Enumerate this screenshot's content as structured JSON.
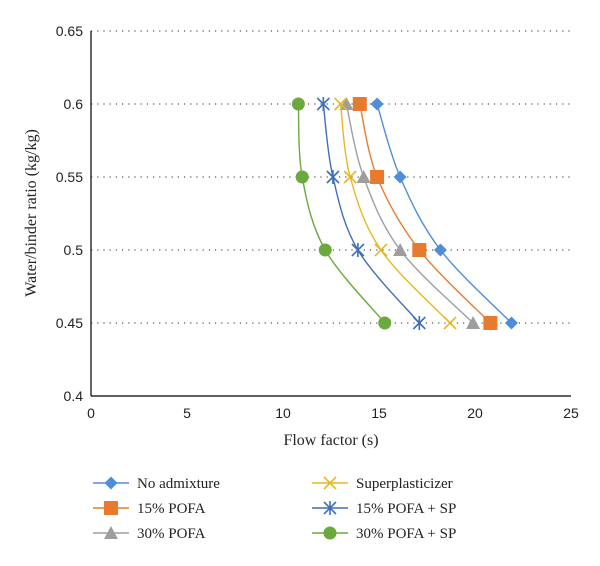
{
  "chart_data": {
    "type": "line",
    "title": "",
    "xlabel": "Flow factor (s)",
    "ylabel": "Water/binder ratio (kg/kg)",
    "xlim": [
      0,
      25
    ],
    "ylim": [
      0.4,
      0.65
    ],
    "xticks": [
      "0",
      "5",
      "10",
      "15",
      "20",
      "25"
    ],
    "yticks": [
      "0.4",
      "0.45",
      "0.5",
      "0.55",
      "0.6",
      "0.65"
    ],
    "grid": "horizontal-dotted",
    "legend": "bottom",
    "series": [
      {
        "name": "No admixture",
        "color": "#4F8ED6",
        "marker": "diamond",
        "points": [
          {
            "x": 14.9,
            "y": 0.6
          },
          {
            "x": 16.1,
            "y": 0.55
          },
          {
            "x": 18.2,
            "y": 0.5
          },
          {
            "x": 21.9,
            "y": 0.45
          }
        ]
      },
      {
        "name": "15% POFA",
        "color": "#E87A2E",
        "marker": "square",
        "points": [
          {
            "x": 14.0,
            "y": 0.6
          },
          {
            "x": 14.9,
            "y": 0.55
          },
          {
            "x": 17.1,
            "y": 0.5
          },
          {
            "x": 20.8,
            "y": 0.45
          }
        ]
      },
      {
        "name": "30% POFA",
        "color": "#9E9E9E",
        "marker": "triangle",
        "points": [
          {
            "x": 13.3,
            "y": 0.6
          },
          {
            "x": 14.2,
            "y": 0.55
          },
          {
            "x": 16.1,
            "y": 0.5
          },
          {
            "x": 19.9,
            "y": 0.45
          }
        ]
      },
      {
        "name": "Superplasticizer",
        "color": "#E8B820",
        "marker": "x",
        "points": [
          {
            "x": 13.0,
            "y": 0.6
          },
          {
            "x": 13.5,
            "y": 0.55
          },
          {
            "x": 15.1,
            "y": 0.5
          },
          {
            "x": 18.7,
            "y": 0.45
          }
        ]
      },
      {
        "name": "15% POFA + SP",
        "color": "#3E6FB8",
        "marker": "asterisk",
        "points": [
          {
            "x": 12.1,
            "y": 0.6
          },
          {
            "x": 12.6,
            "y": 0.55
          },
          {
            "x": 13.9,
            "y": 0.5
          },
          {
            "x": 17.1,
            "y": 0.45
          }
        ]
      },
      {
        "name": "30% POFA + SP",
        "color": "#6BA83E",
        "marker": "circle",
        "points": [
          {
            "x": 10.8,
            "y": 0.6
          },
          {
            "x": 11.0,
            "y": 0.55
          },
          {
            "x": 12.2,
            "y": 0.5
          },
          {
            "x": 15.3,
            "y": 0.45
          }
        ]
      }
    ]
  }
}
